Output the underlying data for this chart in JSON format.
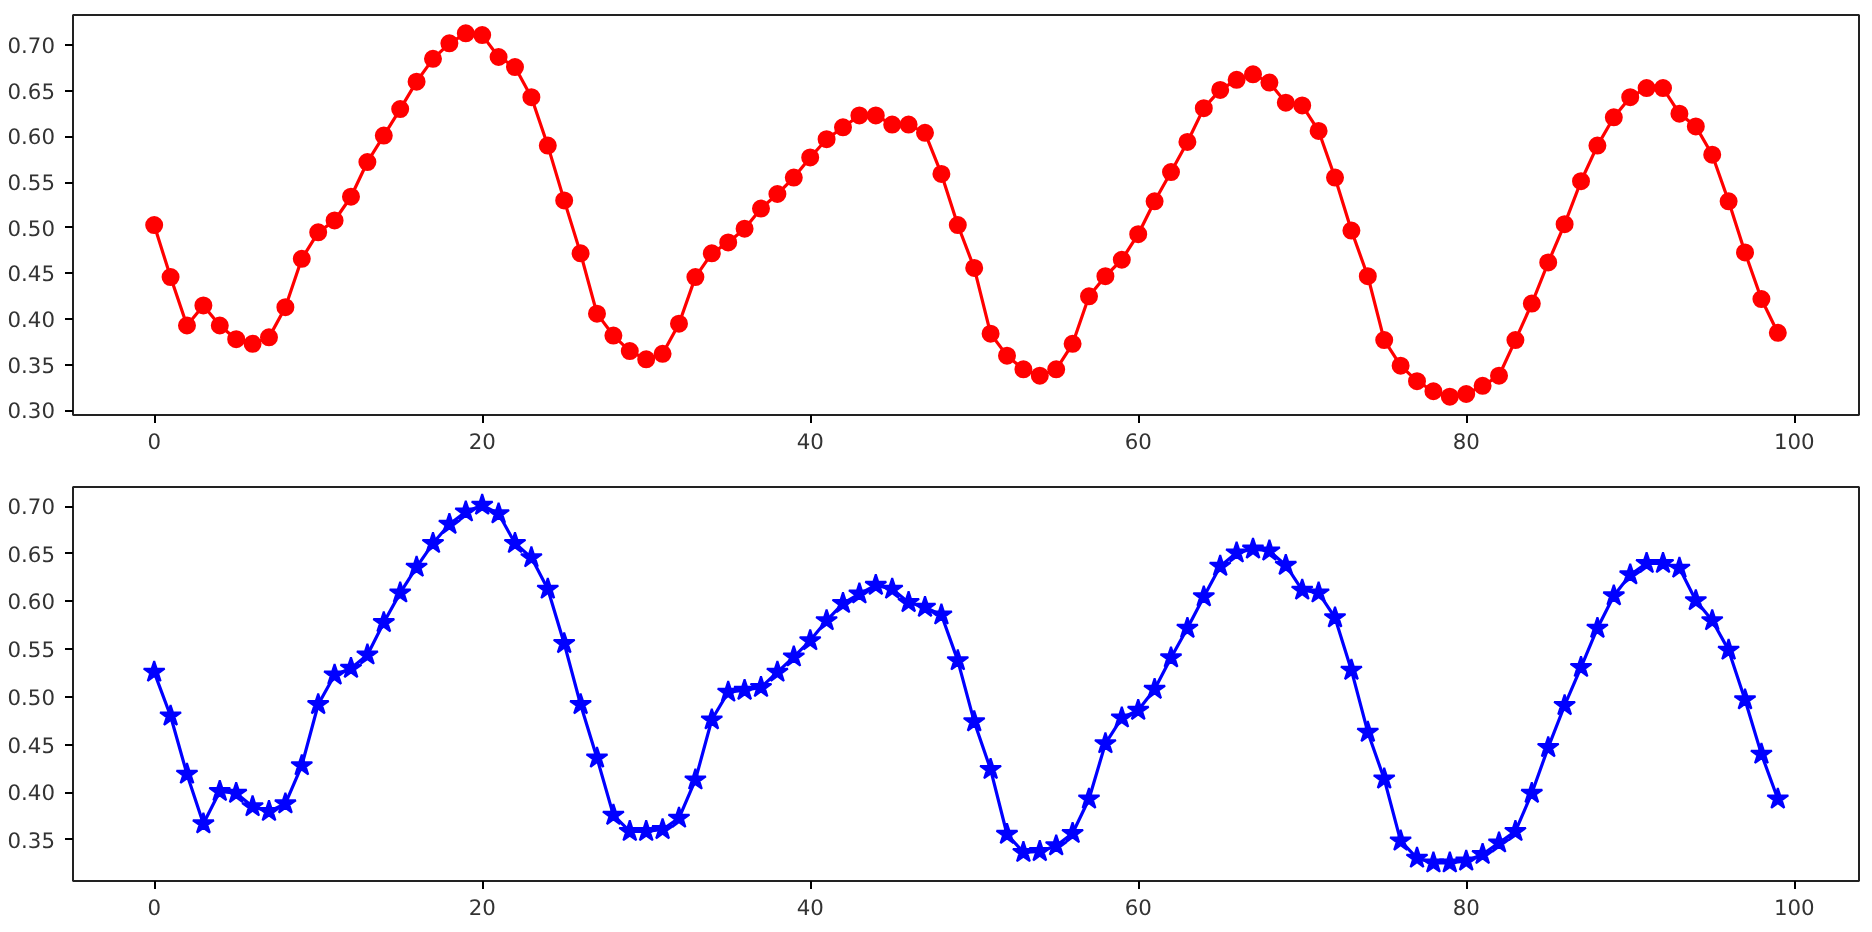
{
  "chart_data": [
    {
      "type": "line",
      "marker": "circle",
      "line_style": "solid",
      "grid": false,
      "x": [
        0,
        1,
        2,
        3,
        4,
        5,
        6,
        7,
        8,
        9,
        10,
        11,
        12,
        13,
        14,
        15,
        16,
        17,
        18,
        19,
        20,
        21,
        22,
        23,
        24,
        25,
        26,
        27,
        28,
        29,
        30,
        31,
        32,
        33,
        34,
        35,
        36,
        37,
        38,
        39,
        40,
        41,
        42,
        43,
        44,
        45,
        46,
        47,
        48,
        49,
        50,
        51,
        52,
        53,
        54,
        55,
        56,
        57,
        58,
        59,
        60,
        61,
        62,
        63,
        64,
        65,
        66,
        67,
        68,
        69,
        70,
        71,
        72,
        73,
        74,
        75,
        76,
        77,
        78,
        79,
        80,
        81,
        82,
        83,
        84,
        85,
        86,
        87,
        88,
        89,
        90,
        91,
        92,
        93,
        94,
        95,
        96,
        97,
        98,
        99
      ],
      "series": [
        {
          "color": "#ff0000",
          "values": [
            0.503,
            0.446,
            0.393,
            0.415,
            0.393,
            0.378,
            0.373,
            0.38,
            0.413,
            0.466,
            0.495,
            0.508,
            0.534,
            0.572,
            0.601,
            0.63,
            0.66,
            0.685,
            0.702,
            0.713,
            0.711,
            0.687,
            0.676,
            0.643,
            0.59,
            0.53,
            0.472,
            0.406,
            0.382,
            0.365,
            0.356,
            0.362,
            0.395,
            0.446,
            0.472,
            0.484,
            0.499,
            0.521,
            0.537,
            0.555,
            0.577,
            0.597,
            0.61,
            0.623,
            0.623,
            0.613,
            0.613,
            0.604,
            0.559,
            0.503,
            0.456,
            0.384,
            0.36,
            0.345,
            0.338,
            0.345,
            0.373,
            0.425,
            0.447,
            0.465,
            0.493,
            0.529,
            0.561,
            0.594,
            0.631,
            0.651,
            0.662,
            0.668,
            0.659,
            0.637,
            0.634,
            0.606,
            0.555,
            0.497,
            0.447,
            0.377,
            0.349,
            0.332,
            0.321,
            0.315,
            0.318,
            0.327,
            0.338,
            0.377,
            0.417,
            0.462,
            0.504,
            0.551,
            0.59,
            0.621,
            0.643,
            0.653,
            0.653,
            0.625,
            0.611,
            0.58,
            0.529,
            0.473,
            0.422,
            0.385
          ]
        }
      ],
      "xlim": [
        -4.95,
        103.95
      ],
      "xticks": [
        0,
        20,
        40,
        60,
        80,
        100
      ],
      "ylim": [
        0.295,
        0.733
      ],
      "yticks": [
        {
          "value": 0.3,
          "label": "0.30"
        },
        {
          "value": 0.35,
          "label": "0.35"
        },
        {
          "value": 0.4,
          "label": "0.40"
        },
        {
          "value": 0.45,
          "label": "0.45"
        },
        {
          "value": 0.5,
          "label": "0.50"
        },
        {
          "value": 0.55,
          "label": "0.55"
        },
        {
          "value": 0.6,
          "label": "0.60"
        },
        {
          "value": 0.65,
          "label": "0.65"
        },
        {
          "value": 0.7,
          "label": "0.70"
        }
      ]
    },
    {
      "type": "line",
      "marker": "star",
      "line_style": "solid",
      "grid": false,
      "x": [
        0,
        1,
        2,
        3,
        4,
        5,
        6,
        7,
        8,
        9,
        10,
        11,
        12,
        13,
        14,
        15,
        16,
        17,
        18,
        19,
        20,
        21,
        22,
        23,
        24,
        25,
        26,
        27,
        28,
        29,
        30,
        31,
        32,
        33,
        34,
        35,
        36,
        37,
        38,
        39,
        40,
        41,
        42,
        43,
        44,
        45,
        46,
        47,
        48,
        49,
        50,
        51,
        52,
        53,
        54,
        55,
        56,
        57,
        58,
        59,
        60,
        61,
        62,
        63,
        64,
        65,
        66,
        67,
        68,
        69,
        70,
        71,
        72,
        73,
        74,
        75,
        76,
        77,
        78,
        79,
        80,
        81,
        82,
        83,
        84,
        85,
        86,
        87,
        88,
        89,
        90,
        91,
        92,
        93,
        94,
        95,
        96,
        97,
        98,
        99
      ],
      "series": [
        {
          "color": "#0000ff",
          "values": [
            0.526,
            0.48,
            0.419,
            0.367,
            0.401,
            0.399,
            0.385,
            0.38,
            0.388,
            0.428,
            0.492,
            0.523,
            0.53,
            0.544,
            0.578,
            0.609,
            0.636,
            0.661,
            0.681,
            0.694,
            0.701,
            0.692,
            0.661,
            0.646,
            0.613,
            0.556,
            0.492,
            0.436,
            0.376,
            0.359,
            0.359,
            0.361,
            0.373,
            0.413,
            0.476,
            0.505,
            0.507,
            0.51,
            0.526,
            0.542,
            0.559,
            0.58,
            0.598,
            0.608,
            0.617,
            0.613,
            0.599,
            0.594,
            0.586,
            0.538,
            0.474,
            0.424,
            0.356,
            0.337,
            0.338,
            0.344,
            0.357,
            0.393,
            0.451,
            0.478,
            0.486,
            0.508,
            0.541,
            0.572,
            0.605,
            0.637,
            0.651,
            0.655,
            0.653,
            0.638,
            0.612,
            0.609,
            0.583,
            0.528,
            0.463,
            0.414,
            0.349,
            0.331,
            0.326,
            0.326,
            0.328,
            0.335,
            0.347,
            0.359,
            0.399,
            0.447,
            0.491,
            0.531,
            0.572,
            0.606,
            0.628,
            0.64,
            0.64,
            0.635,
            0.601,
            0.58,
            0.549,
            0.497,
            0.44,
            0.393
          ]
        }
      ],
      "xlim": [
        -4.95,
        103.95
      ],
      "xticks": [
        0,
        20,
        40,
        60,
        80,
        100
      ],
      "ylim": [
        0.307,
        0.72
      ],
      "yticks": [
        {
          "value": 0.35,
          "label": "0.35"
        },
        {
          "value": 0.4,
          "label": "0.40"
        },
        {
          "value": 0.45,
          "label": "0.45"
        },
        {
          "value": 0.5,
          "label": "0.50"
        },
        {
          "value": 0.55,
          "label": "0.55"
        },
        {
          "value": 0.6,
          "label": "0.60"
        },
        {
          "value": 0.65,
          "label": "0.65"
        },
        {
          "value": 0.7,
          "label": "0.70"
        }
      ]
    }
  ]
}
